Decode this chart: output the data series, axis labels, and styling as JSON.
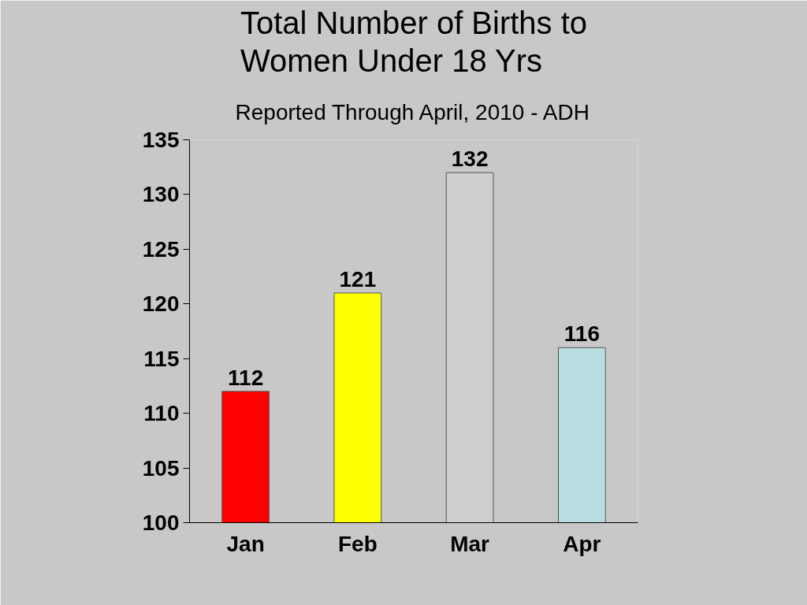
{
  "chart_data": {
    "type": "bar",
    "title": "Total Number of Births to Women Under 18 Yrs",
    "subtitle": "Reported Through April, 2010 - ADH",
    "categories": [
      "Jan",
      "Feb",
      "Mar",
      "Apr"
    ],
    "values": [
      112,
      121,
      132,
      116
    ],
    "colors": [
      "#ff0000",
      "#ffff00",
      "#cfcfcf",
      "#b8dde0"
    ],
    "ylim": [
      100,
      135
    ],
    "yticks": [
      100,
      105,
      110,
      115,
      120,
      125,
      130,
      135
    ],
    "data_labels": true
  }
}
